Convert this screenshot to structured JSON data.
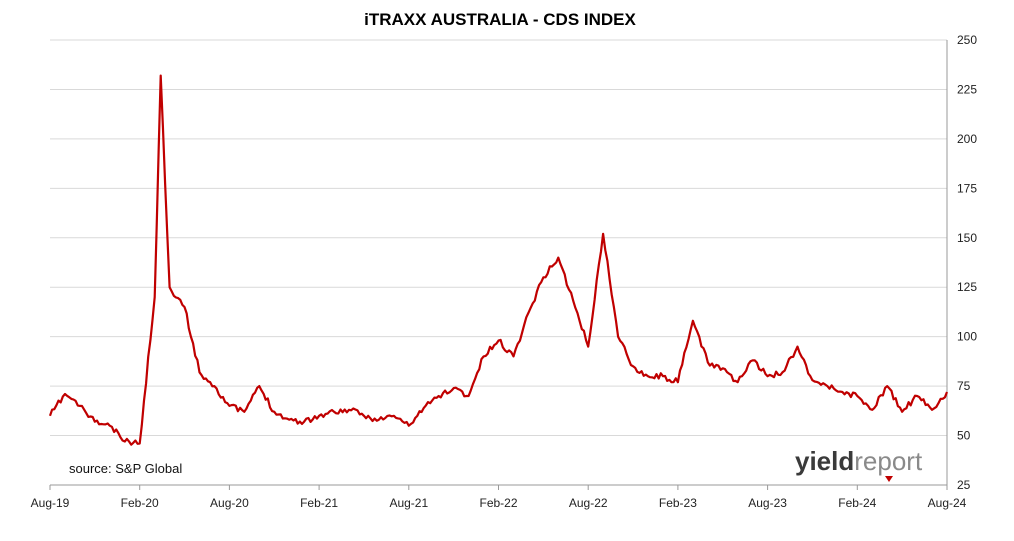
{
  "chart_data": {
    "type": "line",
    "title": "iTRAXX AUSTRALIA - CDS INDEX",
    "xlabel": "",
    "ylabel": "",
    "ylim": [
      25,
      250
    ],
    "yticks": [
      25,
      50,
      75,
      100,
      125,
      150,
      175,
      200,
      225,
      250
    ],
    "y_axis_side": "right",
    "grid": "horizontal",
    "x_tick_labels": [
      "Aug-19",
      "Feb-20",
      "Aug-20",
      "Feb-21",
      "Aug-21",
      "Feb-22",
      "Aug-22",
      "Feb-23",
      "Aug-23",
      "Feb-24",
      "Aug-24"
    ],
    "series_color": "#c00000",
    "series": [
      {
        "x": [
          "Aug-19",
          "Sep-19",
          "Oct-19",
          "Nov-19",
          "Dec-19",
          "Jan-20",
          "Feb-20",
          "Mar-20",
          "Mar-20",
          "Apr-20",
          "May-20",
          "Jun-20",
          "Jul-20",
          "Aug-20",
          "Sep-20",
          "Oct-20",
          "Nov-20",
          "Dec-20",
          "Jan-21",
          "Feb-21",
          "Mar-21",
          "Apr-21",
          "May-21",
          "Jun-21",
          "Jul-21",
          "Aug-21",
          "Sep-21",
          "Oct-21",
          "Nov-21",
          "Dec-21",
          "Jan-22",
          "Feb-22",
          "Mar-22",
          "Apr-22",
          "May-22",
          "Jun-22",
          "Jul-22",
          "Aug-22",
          "Sep-22",
          "Oct-22",
          "Nov-22",
          "Dec-22",
          "Jan-23",
          "Feb-23",
          "Mar-23",
          "Apr-23",
          "May-23",
          "Jun-23",
          "Jul-23",
          "Aug-23",
          "Sep-23",
          "Oct-23",
          "Nov-23",
          "Dec-23",
          "Jan-24",
          "Feb-24",
          "Mar-24",
          "Apr-24",
          "May-24",
          "Jun-24",
          "Jul-24",
          "Aug-24"
        ],
        "values": [
          60,
          71,
          65,
          57,
          55,
          47,
          46,
          120,
          232,
          125,
          115,
          82,
          75,
          65,
          62,
          75,
          62,
          58,
          57,
          60,
          62,
          63,
          60,
          58,
          60,
          55,
          64,
          70,
          74,
          70,
          90,
          98,
          90,
          112,
          130,
          140,
          118,
          95,
          152,
          100,
          85,
          80,
          80,
          77,
          108,
          87,
          84,
          77,
          88,
          80,
          82,
          95,
          78,
          75,
          72,
          70,
          63,
          75,
          62,
          70,
          63,
          72
        ]
      }
    ]
  },
  "source": "source: S&P Global",
  "logo": {
    "part1": "yield",
    "part2": "report"
  }
}
